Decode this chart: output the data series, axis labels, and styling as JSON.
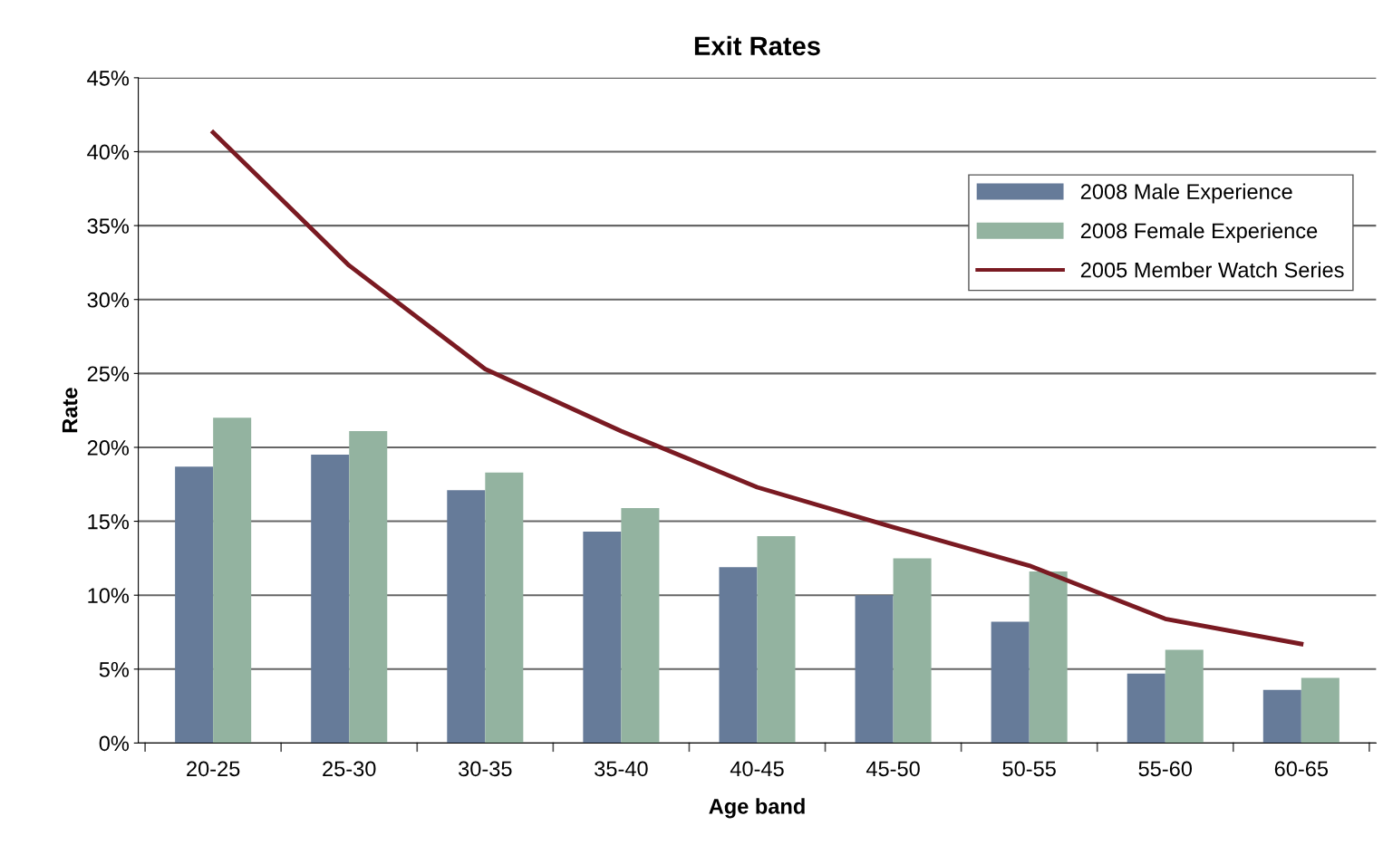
{
  "chart_data": {
    "type": "bar",
    "title": "Exit Rates",
    "xlabel": "Age band",
    "ylabel": "Rate",
    "categories": [
      "20-25",
      "25-30",
      "30-35",
      "35-40",
      "40-45",
      "45-50",
      "50-55",
      "55-60",
      "60-65"
    ],
    "series": [
      {
        "name": "2008 Male Experience",
        "color": "#667b99",
        "values": [
          18.7,
          19.5,
          17.1,
          14.3,
          11.9,
          10.0,
          8.2,
          4.7,
          3.6
        ]
      },
      {
        "name": "2008 Female Experience",
        "color": "#93b3a0",
        "values": [
          22.0,
          21.1,
          18.3,
          15.9,
          14.0,
          12.5,
          11.6,
          6.3,
          4.4
        ]
      },
      {
        "name": "2005 Member Watch Series",
        "color": "#7a1a22",
        "type": "line",
        "values": [
          41.3,
          32.3,
          25.3,
          21.1,
          17.3,
          14.6,
          12.0,
          8.4,
          6.7
        ]
      }
    ],
    "ylim": [
      0,
      45
    ],
    "yticks": [
      {
        "value": 0,
        "label": "0%"
      },
      {
        "value": 5,
        "label": "5%"
      },
      {
        "value": 10,
        "label": "10%"
      },
      {
        "value": 15,
        "label": "15%"
      },
      {
        "value": 20,
        "label": "20%"
      },
      {
        "value": 25,
        "label": "25%"
      },
      {
        "value": 30,
        "label": "30%"
      },
      {
        "value": 35,
        "label": "35%"
      },
      {
        "value": 40,
        "label": "40%"
      },
      {
        "value": 45,
        "label": "45%"
      }
    ],
    "grid": "y",
    "legend": "top right"
  }
}
